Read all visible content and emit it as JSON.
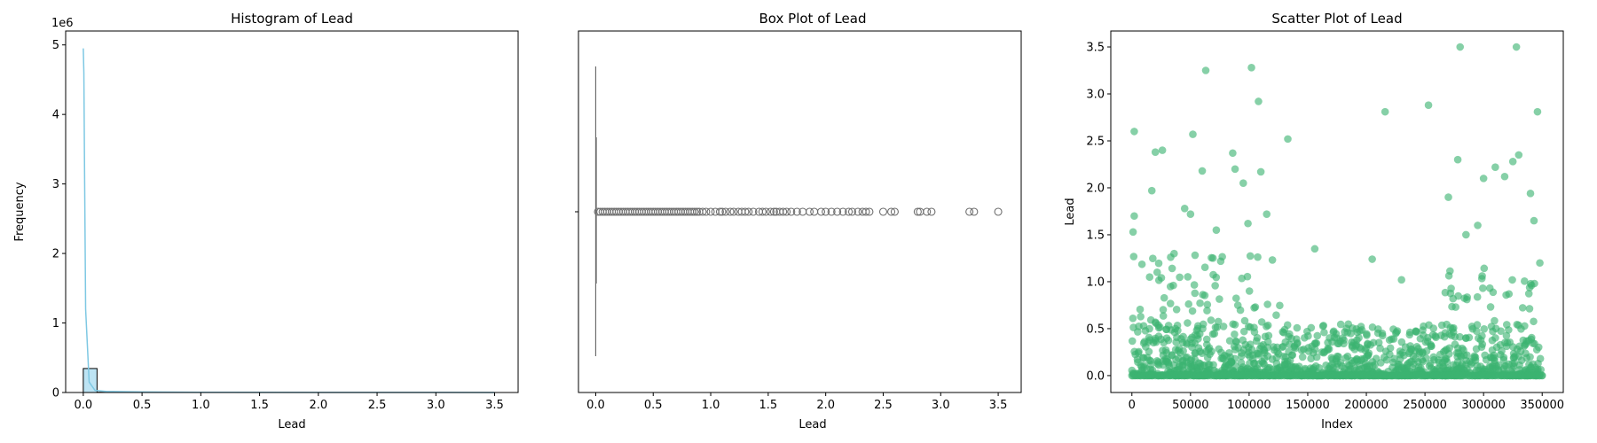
{
  "chart_data": [
    {
      "type": "bar",
      "title": "Histogram of Lead",
      "xlabel": "Lead",
      "ylabel": "Frequency",
      "y_offset_label": "1e6",
      "xlim": [
        -0.15,
        3.7
      ],
      "ylim": [
        0,
        5.2
      ],
      "x_ticks": [
        0.0,
        0.5,
        1.0,
        1.5,
        2.0,
        2.5,
        3.0,
        3.5
      ],
      "x_tick_labels": [
        "0.0",
        "0.5",
        "1.0",
        "1.5",
        "2.0",
        "2.5",
        "3.0",
        "3.5"
      ],
      "y_ticks": [
        0,
        1,
        2,
        3,
        4,
        5
      ],
      "y_tick_labels": [
        "0",
        "1",
        "2",
        "3",
        "4",
        "5"
      ],
      "bins": {
        "edges": [
          0.0,
          0.117,
          0.233,
          0.35,
          0.467,
          0.583,
          0.7,
          0.817,
          0.933,
          1.05,
          1.167,
          1.283,
          1.4,
          1.517,
          1.633,
          1.75,
          1.867,
          1.983,
          2.1,
          2.217,
          2.333,
          2.45,
          2.567,
          2.683,
          2.8,
          2.917,
          3.033,
          3.15,
          3.267,
          3.383,
          3.5
        ],
        "counts": [
          0.345,
          0.004,
          0.002,
          0.001,
          0.001,
          0.001,
          0.001,
          0.001,
          0.0005,
          0.0005,
          0.0005,
          0.0005,
          0.0005,
          0.0003,
          0.0003,
          0.0002,
          0.0002,
          0.0002,
          0.0001,
          0.0001,
          0.0001,
          0.0001,
          0.0001,
          0.0001,
          0.0001,
          0.0001,
          0,
          0,
          0,
          0.0001
        ]
      },
      "kde": {
        "x": [
          0.0,
          0.005,
          0.01,
          0.02,
          0.05,
          0.1,
          0.2,
          0.5,
          1.0,
          2.0,
          3.0,
          3.5
        ],
        "y": [
          4.95,
          4.6,
          3.4,
          1.2,
          0.15,
          0.03,
          0.015,
          0.008,
          0.004,
          0.002,
          0.001,
          0.0005
        ]
      },
      "colors": {
        "bar": "#87ceeb",
        "bar_edge": "#000000",
        "kde": "#7ec8e3"
      }
    },
    {
      "type": "box",
      "title": "Box Plot of Lead",
      "xlabel": "Lead",
      "xlim": [
        -0.15,
        3.7
      ],
      "x_ticks": [
        0.0,
        0.5,
        1.0,
        1.5,
        2.0,
        2.5,
        3.0,
        3.5
      ],
      "x_tick_labels": [
        "0.0",
        "0.5",
        "1.0",
        "1.5",
        "2.0",
        "2.5",
        "3.0",
        "3.5"
      ],
      "stats": {
        "q1": 0.0,
        "median": 0.0,
        "q3": 0.002,
        "whisker_low": 0.0,
        "whisker_high": 0.005
      },
      "outliers": [
        0.02,
        0.04,
        0.06,
        0.08,
        0.1,
        0.12,
        0.14,
        0.16,
        0.18,
        0.2,
        0.22,
        0.24,
        0.26,
        0.28,
        0.3,
        0.32,
        0.34,
        0.36,
        0.38,
        0.4,
        0.42,
        0.44,
        0.46,
        0.48,
        0.5,
        0.52,
        0.54,
        0.56,
        0.58,
        0.6,
        0.62,
        0.64,
        0.66,
        0.68,
        0.7,
        0.72,
        0.74,
        0.76,
        0.78,
        0.8,
        0.82,
        0.84,
        0.86,
        0.88,
        0.9,
        0.93,
        0.96,
        1.0,
        1.04,
        1.08,
        1.1,
        1.13,
        1.17,
        1.2,
        1.24,
        1.27,
        1.3,
        1.33,
        1.37,
        1.42,
        1.45,
        1.48,
        1.52,
        1.55,
        1.57,
        1.6,
        1.63,
        1.66,
        1.7,
        1.75,
        1.8,
        1.86,
        1.9,
        1.96,
        2.0,
        2.05,
        2.1,
        2.15,
        2.2,
        2.23,
        2.28,
        2.32,
        2.35,
        2.38,
        2.5,
        2.57,
        2.6,
        2.8,
        2.82,
        2.88,
        2.92,
        3.25,
        3.29,
        3.5
      ],
      "colors": {
        "line": "#6e6e6e"
      }
    },
    {
      "type": "scatter",
      "title": "Scatter Plot of Lead",
      "xlabel": "Index",
      "ylabel": "Lead",
      "xlim": [
        -18000,
        368000
      ],
      "ylim": [
        -0.18,
        3.67
      ],
      "x_ticks": [
        0,
        50000,
        100000,
        150000,
        200000,
        250000,
        300000,
        350000
      ],
      "x_tick_labels": [
        "0",
        "50000",
        "100000",
        "150000",
        "200000",
        "250000",
        "300000",
        "350000"
      ],
      "y_ticks": [
        0.0,
        0.5,
        1.0,
        1.5,
        2.0,
        2.5,
        3.0,
        3.5
      ],
      "y_tick_labels": [
        "0.0",
        "0.5",
        "1.0",
        "1.5",
        "2.0",
        "2.5",
        "3.0",
        "3.5"
      ],
      "highlighted_points": [
        [
          2000,
          2.6
        ],
        [
          20000,
          2.38
        ],
        [
          26000,
          2.4
        ],
        [
          52000,
          2.57
        ],
        [
          63000,
          3.25
        ],
        [
          86000,
          2.37
        ],
        [
          88000,
          2.2
        ],
        [
          95000,
          2.05
        ],
        [
          102000,
          3.28
        ],
        [
          108000,
          2.92
        ],
        [
          110000,
          2.17
        ],
        [
          133000,
          2.52
        ],
        [
          17000,
          1.97
        ],
        [
          60000,
          2.18
        ],
        [
          216000,
          2.81
        ],
        [
          253000,
          2.88
        ],
        [
          280000,
          3.5
        ],
        [
          328000,
          3.5
        ],
        [
          346000,
          2.81
        ],
        [
          278000,
          2.3
        ],
        [
          330000,
          2.35
        ],
        [
          325000,
          2.28
        ],
        [
          310000,
          2.22
        ],
        [
          318000,
          2.12
        ],
        [
          340000,
          1.94
        ],
        [
          300000,
          2.1
        ],
        [
          270000,
          1.9
        ],
        [
          285000,
          1.5
        ],
        [
          295000,
          1.6
        ],
        [
          156000,
          1.35
        ],
        [
          205000,
          1.24
        ],
        [
          230000,
          1.02
        ],
        [
          45000,
          1.78
        ],
        [
          50000,
          1.72
        ],
        [
          115000,
          1.72
        ],
        [
          36000,
          1.3
        ],
        [
          72000,
          1.55
        ],
        [
          99000,
          1.62
        ],
        [
          2000,
          1.7
        ],
        [
          1000,
          1.53
        ],
        [
          348000,
          1.2
        ],
        [
          343000,
          1.65
        ]
      ],
      "colors": {
        "point": "#3cb371"
      }
    }
  ]
}
